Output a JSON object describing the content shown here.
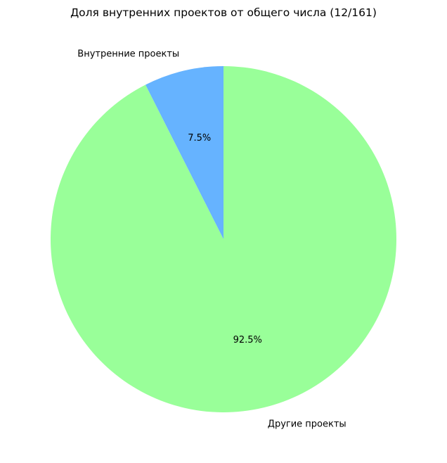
{
  "chart_data": {
    "type": "pie",
    "title": "Доля внутренних проектов от общего числа (12/161)",
    "start_angle_deg": 90,
    "direction": "counterclockwise",
    "slices": [
      {
        "label": "Внутренние проекты",
        "value": 12,
        "percent_label": "7.5%",
        "color": "#66b3ff"
      },
      {
        "label": "Другие проекты",
        "value": 149,
        "percent_label": "92.5%",
        "color": "#99ff99"
      }
    ]
  }
}
